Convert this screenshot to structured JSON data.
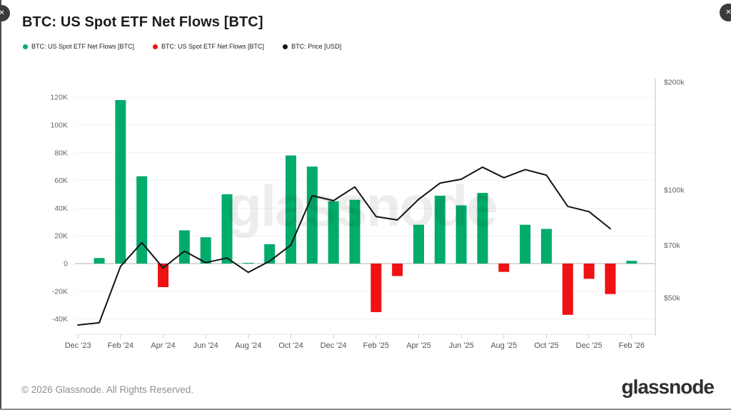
{
  "ui": {
    "close_symbol": "✕"
  },
  "header": {
    "title": "BTC: US Spot ETF Net Flows [BTC]"
  },
  "legend": {
    "position": "top-left",
    "items": [
      {
        "label": "BTC: US Spot ETF Net Flows [BTC]",
        "color": "#00ab6b"
      },
      {
        "label": "BTC: US Spot ETF Net Flows [BTC]",
        "color": "#ee1212"
      },
      {
        "label": "BTC: Price [USD]",
        "color": "#141414"
      }
    ]
  },
  "watermark": {
    "text": "glassnode"
  },
  "footer": {
    "copyright": "© 2026 Glassnode. All Rights Reserved.",
    "logo_text": "glassnode"
  },
  "chart_data": {
    "type": "bar",
    "subtype": "bar+line-combo",
    "title": "BTC: US Spot ETF Net Flows [BTC]",
    "months": [
      "Dec '23",
      "Jan '24",
      "Feb '24",
      "Mar '24",
      "Apr '24",
      "May '24",
      "Jun '24",
      "Jul '24",
      "Aug '24",
      "Sep '24",
      "Oct '24",
      "Nov '24",
      "Dec '24",
      "Jan '25",
      "Feb '25",
      "Mar '25",
      "Apr '25",
      "May '25",
      "Jun '25",
      "Jul '25",
      "Aug '25",
      "Sep '25",
      "Oct '25",
      "Nov '25",
      "Dec '25",
      "Jan '26",
      "Feb '26"
    ],
    "series": [
      {
        "name": "BTC: US Spot ETF Net Flows [BTC]",
        "type": "bar",
        "unit": "thousand BTC",
        "positive_color": "#00ab6b",
        "negative_color": "#ee1212",
        "values": [
          null,
          4,
          118,
          63,
          -17,
          24,
          19,
          50,
          0.5,
          14,
          78,
          70,
          45,
          46,
          -35,
          -9,
          28,
          49,
          42,
          51,
          -6,
          28,
          25,
          -37,
          -11,
          -22,
          2
        ]
      },
      {
        "name": "BTC: Price [USD]",
        "type": "line",
        "unit": "thousand USD",
        "color": "#141414",
        "values": [
          42,
          42.6,
          61.2,
          71.3,
          60.6,
          67.5,
          62.7,
          64.6,
          58.9,
          63.3,
          70.2,
          96.4,
          93.4,
          102,
          84.3,
          82.5,
          94.2,
          104.5,
          107.2,
          115.8,
          108.2,
          114,
          110,
          90,
          87,
          78,
          null
        ]
      }
    ],
    "left_axis": {
      "unit": "BTC",
      "range_k": [
        -51,
        133
      ],
      "ticks": [
        {
          "label": "120K",
          "value": 120
        },
        {
          "label": "100K",
          "value": 100
        },
        {
          "label": "80K",
          "value": 80
        },
        {
          "label": "60K",
          "value": 60
        },
        {
          "label": "40K",
          "value": 40
        },
        {
          "label": "20K",
          "value": 20
        },
        {
          "label": "0",
          "value": 0
        },
        {
          "label": "-20K",
          "value": -20
        },
        {
          "label": "-40K",
          "value": -40
        }
      ]
    },
    "right_axis": {
      "unit": "USD",
      "scale": "log",
      "ticks": [
        {
          "label": "$200k",
          "value": 200
        },
        {
          "label": "$100k",
          "value": 100
        },
        {
          "label": "$70k",
          "value": 70
        },
        {
          "label": "$50k",
          "value": 50
        }
      ]
    },
    "x_tick_every": 2,
    "grid": "horizontal"
  }
}
